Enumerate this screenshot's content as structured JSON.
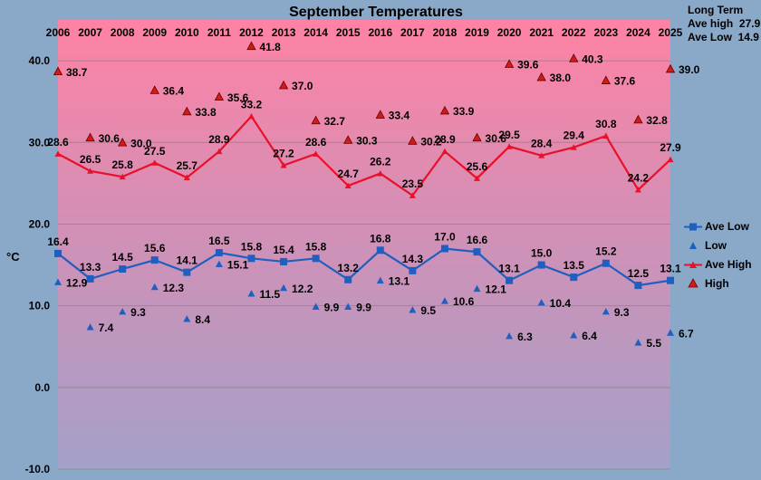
{
  "chart_data": {
    "type": "line",
    "title": "September Temperatures",
    "ylabel": "°C",
    "xlabel": "",
    "ylim": [
      -10,
      45
    ],
    "grid": true,
    "legend_position": "right",
    "y_ticks": [
      "-10.0",
      "0.0",
      "10.0",
      "20.0",
      "30.0",
      "40.0"
    ],
    "categories": [
      "2006",
      "2007",
      "2008",
      "2009",
      "2010",
      "2011",
      "2012",
      "2013",
      "2014",
      "2015",
      "2016",
      "2017",
      "2018",
      "2019",
      "2020",
      "2021",
      "2022",
      "2023",
      "2024",
      "2025"
    ],
    "series": [
      {
        "name": "Ave Low",
        "marker": "square",
        "color": "#1f5fbf",
        "line": true,
        "values": [
          16.4,
          13.3,
          14.5,
          15.6,
          14.1,
          16.5,
          15.8,
          15.4,
          15.8,
          13.2,
          16.8,
          14.3,
          17.0,
          16.6,
          13.1,
          15.0,
          13.5,
          15.2,
          12.5,
          13.1
        ]
      },
      {
        "name": "Low",
        "marker": "triangle",
        "color": "#1f5fbf",
        "line": false,
        "values": [
          12.9,
          7.4,
          9.3,
          12.3,
          8.4,
          15.1,
          11.5,
          12.2,
          9.9,
          9.9,
          13.1,
          9.5,
          10.6,
          12.1,
          6.3,
          10.4,
          6.4,
          9.3,
          5.5,
          6.7
        ]
      },
      {
        "name": "Ave High",
        "marker": "triangle",
        "color": "#e8102a",
        "line": true,
        "values": [
          28.6,
          26.5,
          25.8,
          27.5,
          25.7,
          28.9,
          33.2,
          27.2,
          28.6,
          24.7,
          26.2,
          23.5,
          28.9,
          25.6,
          29.5,
          28.4,
          29.4,
          30.8,
          24.2,
          27.9
        ]
      },
      {
        "name": "High",
        "marker": "triangle",
        "color": "#d11a1a",
        "line": false,
        "values": [
          38.7,
          30.6,
          30.0,
          36.4,
          33.8,
          35.6,
          41.8,
          37.0,
          32.7,
          30.3,
          33.4,
          30.2,
          33.9,
          30.6,
          39.6,
          38.0,
          40.3,
          37.6,
          32.8,
          39.0
        ]
      }
    ],
    "long_term": {
      "heading": "Long Term",
      "ave_high_label": "Ave high",
      "ave_high_value": "27.9",
      "ave_low_label": "Ave Low",
      "ave_low_value": "14.9"
    }
  }
}
